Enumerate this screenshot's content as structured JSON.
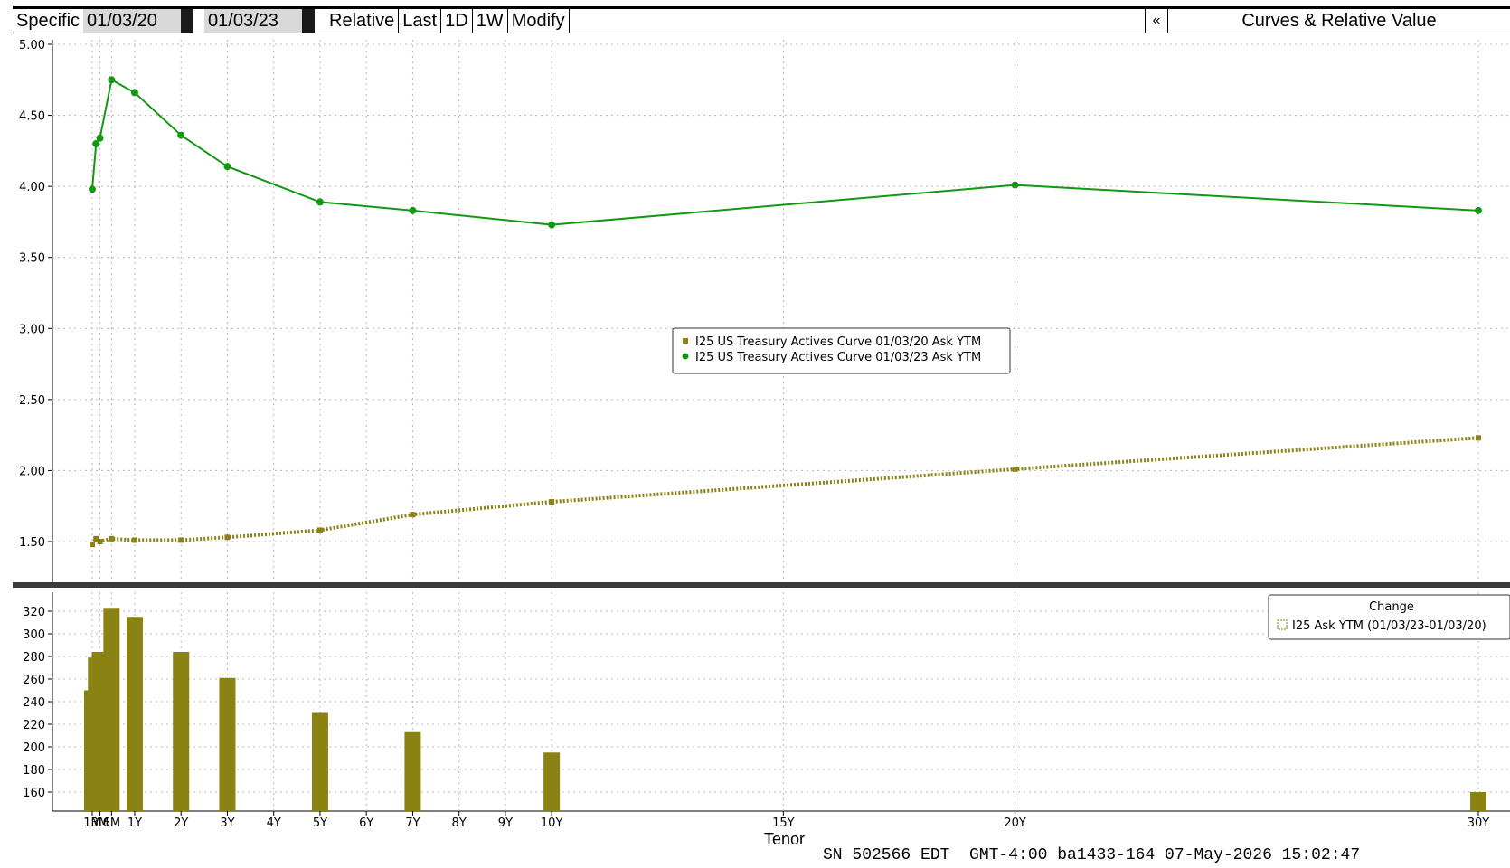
{
  "toolbar": {
    "mode_label": "Specific",
    "start_date": "01/03/20",
    "end_date": "01/03/23",
    "relative_label": "Relative",
    "last_label": "Last",
    "one_day_label": "1D",
    "one_week_label": "1W",
    "modify_label": "Modify",
    "collapse_glyph": "«",
    "panel_title": "Curves & Relative Value"
  },
  "footer": {
    "status_line": "SN 502566 EDT  GMT-4:00 ba1433-164 07-May-2026 15:02:47"
  },
  "chart_data": [
    {
      "type": "line",
      "x_labels": [
        "1M",
        "3M",
        "6M",
        "1Y",
        "2Y",
        "3Y",
        "4Y",
        "5Y",
        "6Y",
        "7Y",
        "8Y",
        "9Y",
        "10Y",
        "15Y",
        "20Y",
        "30Y"
      ],
      "ylim": [
        1.25,
        5.0
      ],
      "yticks": [
        "5.00",
        "4.50",
        "4.00",
        "3.50",
        "3.00",
        "2.50",
        "2.00",
        "1.50"
      ],
      "grid": true,
      "legend_position": "center",
      "colors": {
        "series_2020": "#8b8214",
        "series_2023": "#119911"
      },
      "series": [
        {
          "name": "I25 US Treasury Actives Curve 01/03/20 Ask YTM",
          "style": "dotted",
          "points": [
            {
              "tenor": "1M",
              "value": 1.48
            },
            {
              "tenor": "2M",
              "value": 1.52
            },
            {
              "tenor": "3M",
              "value": 1.5
            },
            {
              "tenor": "6M",
              "value": 1.52
            },
            {
              "tenor": "1Y",
              "value": 1.51
            },
            {
              "tenor": "2Y",
              "value": 1.51
            },
            {
              "tenor": "3Y",
              "value": 1.53
            },
            {
              "tenor": "5Y",
              "value": 1.58
            },
            {
              "tenor": "7Y",
              "value": 1.69
            },
            {
              "tenor": "10Y",
              "value": 1.78
            },
            {
              "tenor": "20Y",
              "value": 2.01
            },
            {
              "tenor": "30Y",
              "value": 2.23
            }
          ]
        },
        {
          "name": "I25 US Treasury Actives Curve 01/03/23 Ask YTM",
          "style": "solid",
          "points": [
            {
              "tenor": "1M",
              "value": 3.98
            },
            {
              "tenor": "2M",
              "value": 4.3
            },
            {
              "tenor": "3M",
              "value": 4.34
            },
            {
              "tenor": "6M",
              "value": 4.75
            },
            {
              "tenor": "1Y",
              "value": 4.66
            },
            {
              "tenor": "2Y",
              "value": 4.36
            },
            {
              "tenor": "3Y",
              "value": 4.14
            },
            {
              "tenor": "5Y",
              "value": 3.89
            },
            {
              "tenor": "7Y",
              "value": 3.83
            },
            {
              "tenor": "10Y",
              "value": 3.73
            },
            {
              "tenor": "20Y",
              "value": 4.01
            },
            {
              "tenor": "30Y",
              "value": 3.83
            }
          ]
        }
      ]
    },
    {
      "type": "bar",
      "title": "Change",
      "series_name": "I25 Ask YTM (01/03/23-01/03/20)",
      "xlabel": "Tenor",
      "ylim": [
        145,
        330
      ],
      "yticks": [
        "320",
        "300",
        "280",
        "260",
        "240",
        "220",
        "200",
        "180",
        "160"
      ],
      "grid": true,
      "legend_position": "top-right",
      "color": "#8b8214",
      "bars": [
        {
          "tenor": "1M",
          "value": 250
        },
        {
          "tenor": "2M",
          "value": 279
        },
        {
          "tenor": "3M",
          "value": 284
        },
        {
          "tenor": "6M",
          "value": 323
        },
        {
          "tenor": "1Y",
          "value": 315
        },
        {
          "tenor": "2Y",
          "value": 284
        },
        {
          "tenor": "3Y",
          "value": 261
        },
        {
          "tenor": "5Y",
          "value": 230
        },
        {
          "tenor": "7Y",
          "value": 213
        },
        {
          "tenor": "10Y",
          "value": 195
        },
        {
          "tenor": "30Y",
          "value": 160
        }
      ]
    }
  ]
}
